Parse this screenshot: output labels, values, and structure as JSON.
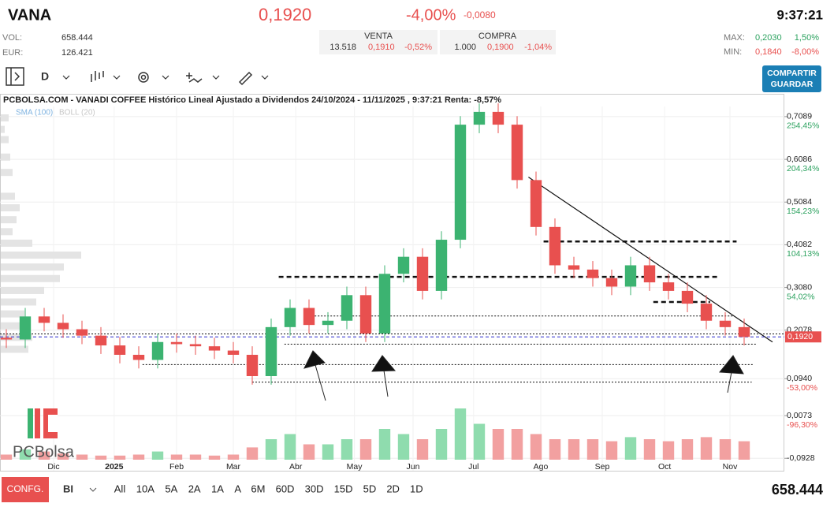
{
  "header": {
    "symbol": "VANA",
    "price": "0,1920",
    "change_pct": "-4,00%",
    "change": "-0,0080",
    "time": "9:37:21",
    "vol_label": "VOL:",
    "vol": "658.444",
    "eur_label": "EUR:",
    "eur": "126.421",
    "venta": {
      "label": "VENTA",
      "qty": "13.518",
      "price": "0,1910",
      "pct": "-0,52%"
    },
    "compra": {
      "label": "COMPRA",
      "qty": "1.000",
      "price": "0,1900",
      "pct": "-1,04%"
    },
    "max": {
      "label": "MAX:",
      "price": "0,2030",
      "pct": "1,50%"
    },
    "min": {
      "label": "MIN:",
      "price": "0,1840",
      "pct": "-8,00%"
    }
  },
  "toolbar": {
    "period": "D",
    "share": "COMPARTIR",
    "save": "GUARDAR"
  },
  "logo": "PCBolsa",
  "footer": {
    "config": "CONFG.",
    "mode": "BI",
    "ranges": [
      "All",
      "10A",
      "5A",
      "2A",
      "1A",
      "A",
      "6M",
      "60D",
      "30D",
      "15D",
      "5D",
      "2D",
      "1D"
    ],
    "volume": "658.444"
  },
  "chart_data": {
    "type": "candlestick",
    "title": "PCBOLSA.COM - VANADI COFFEE Histórico Lineal Ajustado a Dividendos 24/10/2024 - 11/11/2025 , 9:37:21 Renta: -8,57%",
    "indicators": [
      "SMA (100)",
      "BOLL (20)"
    ],
    "up_color": "#3cb371",
    "down_color": "#e8504f",
    "open": [
      0.19,
      0.186,
      0.24,
      0.225,
      0.21,
      0.195,
      0.172,
      0.15,
      0.138,
      0.18,
      0.175,
      0.17,
      0.16,
      0.15,
      0.1,
      0.215,
      0.26,
      0.22,
      0.23,
      0.29,
      0.2,
      0.34,
      0.38,
      0.3,
      0.42,
      0.69,
      0.72,
      0.69,
      0.56,
      0.45,
      0.36,
      0.35,
      0.33,
      0.31,
      0.36,
      0.32,
      0.3,
      0.27,
      0.23,
      0.215
    ],
    "high": [
      0.21,
      0.26,
      0.26,
      0.245,
      0.23,
      0.215,
      0.192,
      0.17,
      0.2,
      0.2,
      0.195,
      0.19,
      0.18,
      0.17,
      0.235,
      0.28,
      0.28,
      0.25,
      0.31,
      0.31,
      0.36,
      0.4,
      0.4,
      0.44,
      0.71,
      0.74,
      0.74,
      0.71,
      0.58,
      0.47,
      0.38,
      0.37,
      0.35,
      0.38,
      0.38,
      0.34,
      0.32,
      0.29,
      0.25,
      0.235
    ],
    "low": [
      0.166,
      0.166,
      0.205,
      0.19,
      0.175,
      0.152,
      0.13,
      0.118,
      0.118,
      0.155,
      0.15,
      0.14,
      0.13,
      0.08,
      0.08,
      0.195,
      0.2,
      0.2,
      0.21,
      0.18,
      0.18,
      0.32,
      0.28,
      0.28,
      0.4,
      0.67,
      0.67,
      0.54,
      0.43,
      0.34,
      0.33,
      0.31,
      0.29,
      0.29,
      0.3,
      0.28,
      0.25,
      0.21,
      0.195,
      0.172
    ],
    "close": [
      0.186,
      0.24,
      0.225,
      0.21,
      0.195,
      0.172,
      0.15,
      0.138,
      0.18,
      0.175,
      0.17,
      0.16,
      0.15,
      0.1,
      0.215,
      0.26,
      0.22,
      0.23,
      0.29,
      0.2,
      0.34,
      0.38,
      0.3,
      0.42,
      0.69,
      0.72,
      0.69,
      0.56,
      0.45,
      0.36,
      0.35,
      0.33,
      0.31,
      0.36,
      0.32,
      0.3,
      0.27,
      0.23,
      0.215,
      0.192
    ],
    "volume": [
      5,
      10,
      8,
      6,
      5,
      4,
      4,
      5,
      8,
      5,
      5,
      4,
      5,
      12,
      20,
      25,
      15,
      15,
      20,
      20,
      30,
      25,
      20,
      30,
      50,
      35,
      30,
      30,
      25,
      20,
      20,
      20,
      18,
      22,
      20,
      18,
      20,
      22,
      20,
      18
    ],
    "xlim": [
      -0.333,
      41.125
    ],
    "xticks": [
      {
        "value": 2.5,
        "label": "Dic"
      },
      {
        "value": 5.7,
        "label": "2025"
      },
      {
        "value": 9.0,
        "label": "Feb"
      },
      {
        "value": 12.0,
        "label": "Mar"
      },
      {
        "value": 15.3,
        "label": "Abr"
      },
      {
        "value": 18.4,
        "label": "May"
      },
      {
        "value": 21.5,
        "label": "Jun"
      },
      {
        "value": 24.7,
        "label": "Jul"
      },
      {
        "value": 28.25,
        "label": "Ago"
      },
      {
        "value": 31.5,
        "label": "Sep"
      },
      {
        "value": 34.8,
        "label": "Oct"
      },
      {
        "value": 38.25,
        "label": "Nov"
      }
    ],
    "ylim": [
      -0.122,
      0.742
    ],
    "yticks": [
      {
        "value": 0.7089,
        "label": "0,7089"
      },
      {
        "value": 0.6086,
        "label": "0,6086"
      },
      {
        "value": 0.5084,
        "label": "0,5084"
      },
      {
        "value": 0.4082,
        "label": "0,4082"
      },
      {
        "value": 0.308,
        "label": "0,3080"
      },
      {
        "value": 0.2078,
        "label": "0,2078"
      },
      {
        "value": 0.094,
        "label": "0,0940"
      },
      {
        "value": 0.0073,
        "label": "0,0073"
      },
      {
        "value": -0.0928,
        "label": "-0,0928"
      }
    ],
    "ytick_pct": [
      "254,45%",
      "204,34%",
      "154,23%",
      "104,13%",
      "54,02%",
      null,
      "-53,00%",
      "-96,30%",
      null
    ],
    "last_price": {
      "value": 0.192,
      "label": "0,1920"
    },
    "volume_profile": {
      "levels": [
        0.705,
        0.678,
        0.654,
        0.613,
        0.577,
        0.521,
        0.494,
        0.466,
        0.438,
        0.411,
        0.383,
        0.355,
        0.328,
        0.3,
        0.273,
        0.245,
        0.217,
        0.19,
        0.162
      ],
      "values": [
        10,
        5,
        10,
        12,
        15,
        18,
        24,
        20,
        15,
        40,
        102,
        80,
        75,
        55,
        45,
        30,
        35,
        40,
        35
      ]
    },
    "support_lines": [
      {
        "y": 0.416,
        "x": [
          28.4,
          38.6
        ],
        "style": "dashed"
      },
      {
        "y": 0.333,
        "x": [
          14.4,
          37.6
        ],
        "style": "dashed"
      },
      {
        "y": 0.274,
        "x": [
          34.2,
          37.2
        ],
        "style": "dashed"
      },
      {
        "y": 0.241,
        "x": [
          16.3,
          38.4
        ],
        "style": "dotted"
      },
      {
        "y": 0.199,
        "x": [
          -0.333,
          41.125
        ],
        "style": "dotted"
      },
      {
        "y": 0.175,
        "x": [
          14.7,
          39.7
        ],
        "style": "dotted"
      },
      {
        "y": 0.127,
        "x": [
          7.2,
          39.5
        ],
        "style": "dotted"
      },
      {
        "y": 0.086,
        "x": [
          13.0,
          39.4
        ],
        "style": "dotted"
      }
    ],
    "trend_line": {
      "x": [
        27.6,
        40.5
      ],
      "y": [
        0.567,
        0.18
      ]
    }
  }
}
